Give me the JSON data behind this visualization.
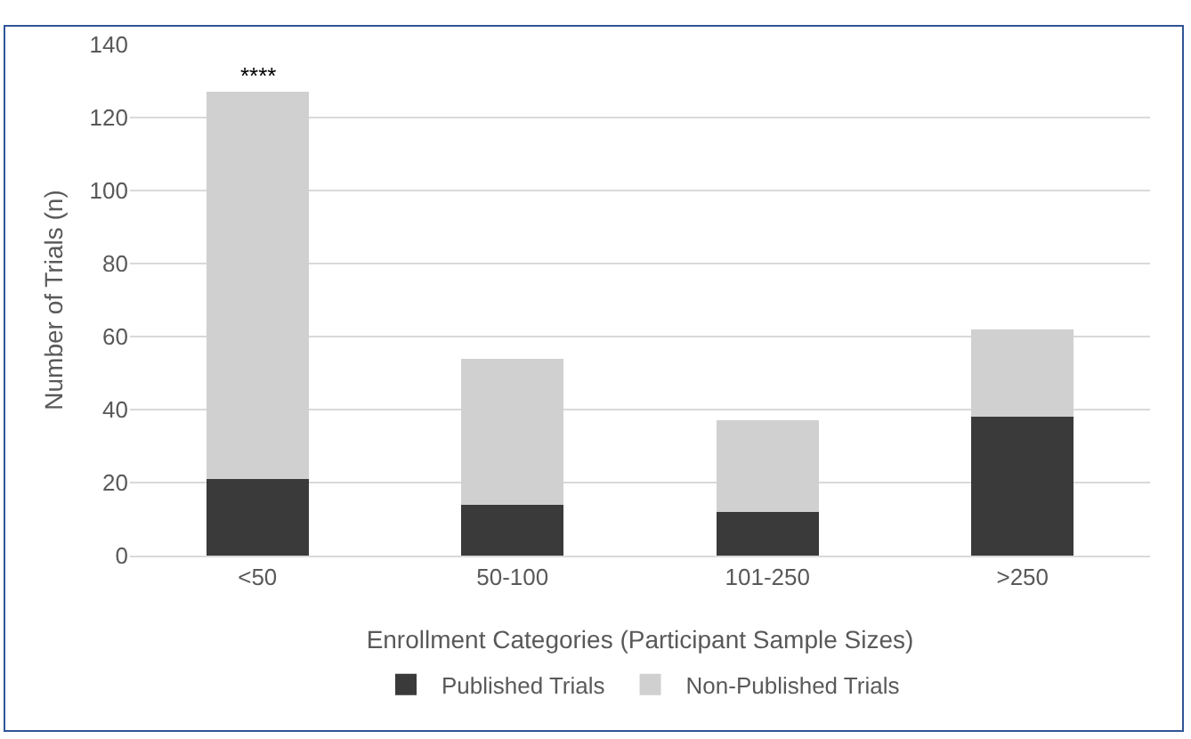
{
  "chart_data": {
    "type": "bar",
    "stacked": true,
    "xlabel": "Enrollment Categories (Participant Sample Sizes)",
    "ylabel": "Number of Trials (n)",
    "categories": [
      "<50",
      "50-100",
      "101-250",
      ">250"
    ],
    "series": [
      {
        "name": "Published Trials",
        "color": "#3a3a3a",
        "values": [
          21,
          14,
          12,
          38
        ]
      },
      {
        "name": "Non-Published Trials",
        "color": "#d0d0d0",
        "values": [
          106,
          40,
          25,
          24
        ]
      }
    ],
    "ylim": [
      0,
      140
    ],
    "yticks": [
      0,
      20,
      40,
      60,
      80,
      100,
      120,
      140
    ],
    "grid": "y",
    "legend": "bottom",
    "annotations": [
      {
        "text": "****",
        "x": "<50",
        "y": 127
      }
    ]
  }
}
